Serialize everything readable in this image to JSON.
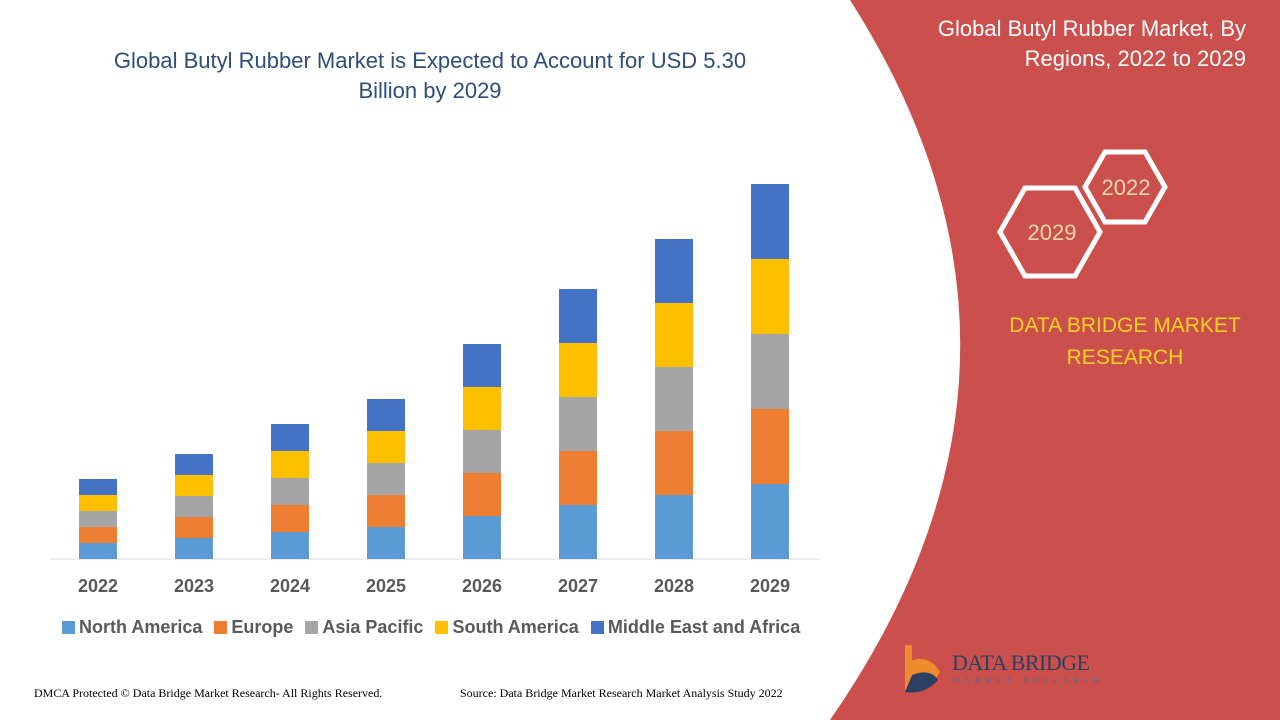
{
  "chart_data": {
    "type": "bar",
    "stacked": true,
    "title": "Global Butyl Rubber Market is Expected to Account for USD 5.30 Billion by 2029",
    "categories": [
      "2022",
      "2023",
      "2024",
      "2025",
      "2026",
      "2027",
      "2028",
      "2029"
    ],
    "series": [
      {
        "name": "North America",
        "color": "#5b9bd5",
        "values": [
          1.6,
          2.1,
          2.7,
          3.2,
          4.3,
          5.4,
          6.4,
          7.5
        ]
      },
      {
        "name": "Europe",
        "color": "#ed7d31",
        "values": [
          1.6,
          2.1,
          2.7,
          3.2,
          4.3,
          5.4,
          6.4,
          7.5
        ]
      },
      {
        "name": "Asia Pacific",
        "color": "#a5a5a5",
        "values": [
          1.6,
          2.1,
          2.7,
          3.2,
          4.3,
          5.4,
          6.4,
          7.5
        ]
      },
      {
        "name": "South America",
        "color": "#ffc000",
        "values": [
          1.6,
          2.1,
          2.7,
          3.2,
          4.3,
          5.4,
          6.4,
          7.5
        ]
      },
      {
        "name": "Middle East and Africa",
        "color": "#4472c4",
        "values": [
          1.6,
          2.1,
          2.7,
          3.2,
          4.3,
          5.4,
          6.4,
          7.5
        ]
      }
    ]
  },
  "panel": {
    "title": "Global Butyl Rubber Market, By Regions, 2022 to 2029",
    "hex_labels": [
      "2022",
      "2029"
    ],
    "brand": "DATA BRIDGE MARKET RESEARCH",
    "logo": {
      "name": "DATA BRIDGE",
      "tagline": "MARKET RESEARCH"
    }
  },
  "footer": {
    "copyright": "DMCA Protected © Data Bridge Market Research- All Rights Reserved.",
    "source": "Source: Data Bridge Market Research Market Analysis Study 2022"
  }
}
